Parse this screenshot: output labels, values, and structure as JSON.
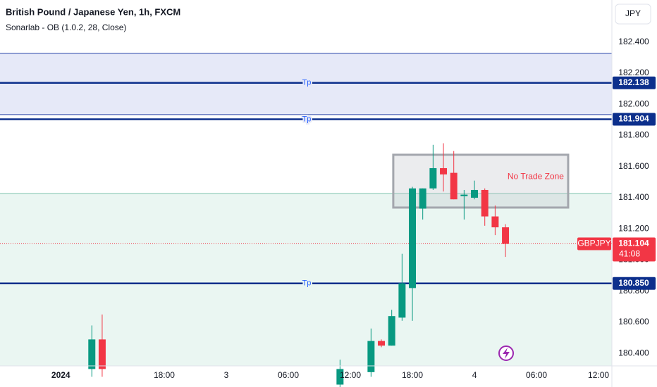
{
  "chart_data": {
    "type": "candlestick",
    "title": "British Pound / Japanese Yen, 1h, FXCM",
    "subtitle": "Sonarlab - OB (1.0.2, 28, Close)",
    "currency": "JPY",
    "x": [
      11,
      12,
      35,
      38,
      39,
      40,
      41,
      42,
      43,
      44,
      45,
      46,
      47,
      48,
      49,
      50,
      51
    ],
    "open": [
      180.3,
      180.49,
      180.2,
      180.28,
      180.48,
      180.45,
      180.63,
      180.82,
      181.33,
      181.46,
      181.59,
      181.56,
      181.41,
      181.4,
      181.45,
      181.28,
      181.21
    ],
    "high": [
      180.58,
      180.65,
      180.36,
      180.56,
      180.49,
      180.68,
      181.04,
      181.47,
      181.46,
      181.74,
      181.75,
      181.7,
      181.45,
      181.51,
      181.46,
      181.35,
      181.23
    ],
    "low": [
      180.25,
      180.25,
      180.15,
      180.25,
      180.44,
      180.45,
      180.61,
      180.61,
      181.26,
      181.45,
      181.44,
      181.39,
      181.26,
      181.39,
      181.22,
      181.16,
      181.02
    ],
    "close": [
      180.49,
      180.3,
      180.3,
      180.48,
      180.45,
      180.64,
      180.85,
      181.46,
      181.46,
      181.59,
      181.55,
      181.39,
      181.42,
      181.45,
      181.28,
      181.21,
      181.104
    ],
    "up_color": "#089981",
    "down_color": "#f23645",
    "xlim": [
      2.12,
      61.29
    ],
    "xticks": [
      {
        "value": 8,
        "label": "2024"
      },
      {
        "value": 18,
        "label": "18:00"
      },
      {
        "value": 24,
        "label": "3"
      },
      {
        "value": 30,
        "label": "06:00"
      },
      {
        "value": 36,
        "label": "12:00"
      },
      {
        "value": 42,
        "label": "18:00"
      },
      {
        "value": 48,
        "label": "4"
      },
      {
        "value": 54,
        "label": "06:00"
      },
      {
        "value": 60,
        "label": "12:00"
      }
    ],
    "ylim": [
      180.32,
      182.67
    ],
    "yticks": [
      {
        "value": 182.4,
        "label": "182.400"
      },
      {
        "value": 182.2,
        "label": "182.200"
      },
      {
        "value": 182.0,
        "label": "182.000"
      },
      {
        "value": 181.8,
        "label": "181.800"
      },
      {
        "value": 181.6,
        "label": "181.600"
      },
      {
        "value": 181.4,
        "label": "181.400"
      },
      {
        "value": 181.2,
        "label": "181.200"
      },
      {
        "value": 181.0,
        "label": "181.000"
      },
      {
        "value": 180.8,
        "label": "180.800"
      },
      {
        "value": 180.6,
        "label": "180.600"
      },
      {
        "value": 180.4,
        "label": "180.400"
      }
    ],
    "grid": false,
    "zones": [
      {
        "from": 181.934,
        "to": 182.328,
        "color": "#e6e9f8",
        "border": "#2a44a8"
      },
      {
        "to": 181.427,
        "color": "#eaf6f2",
        "border": "#7cc3ae"
      }
    ],
    "levels": [
      {
        "value": 182.138,
        "tag": "182.138",
        "label": "Tp",
        "color": "#0c2f8c"
      },
      {
        "value": 181.904,
        "tag": "181.904",
        "label": "Tp",
        "color": "#0c2f8c"
      },
      {
        "value": 180.85,
        "tag": "180.850",
        "label": "Tp",
        "color": "#0c2f8c"
      }
    ],
    "no_trade_zone": {
      "label": "No Trade Zone",
      "xlim": [
        40.15,
        57.06
      ],
      "ylim": [
        181.337,
        181.676
      ]
    },
    "last_price": {
      "value": 181.104,
      "symbol": "GBPJPY",
      "countdown": "41:08"
    }
  }
}
